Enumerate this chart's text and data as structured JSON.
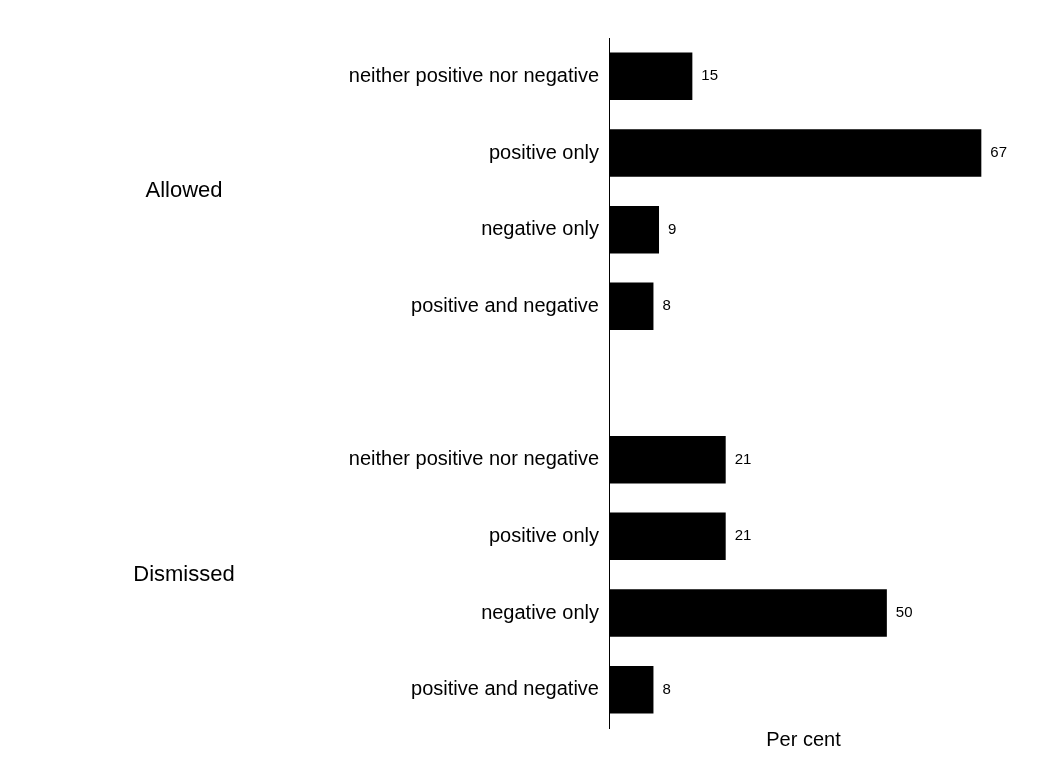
{
  "chart_data": {
    "type": "bar",
    "orientation": "horizontal",
    "xlabel": "Per cent",
    "categories": [
      "neither positive nor negative",
      "positive only",
      "negative only",
      "positive and negative",
      null,
      "neither positive nor negative",
      "positive only",
      "negative only",
      "positive and negative"
    ],
    "values": [
      15,
      67,
      9,
      8,
      null,
      21,
      21,
      50,
      8
    ],
    "color": "#000000",
    "data_labels": true,
    "tick_labels": "y",
    "grid": false,
    "legend": false,
    "annotations": [
      "Allowed",
      "Dismissed"
    ]
  }
}
